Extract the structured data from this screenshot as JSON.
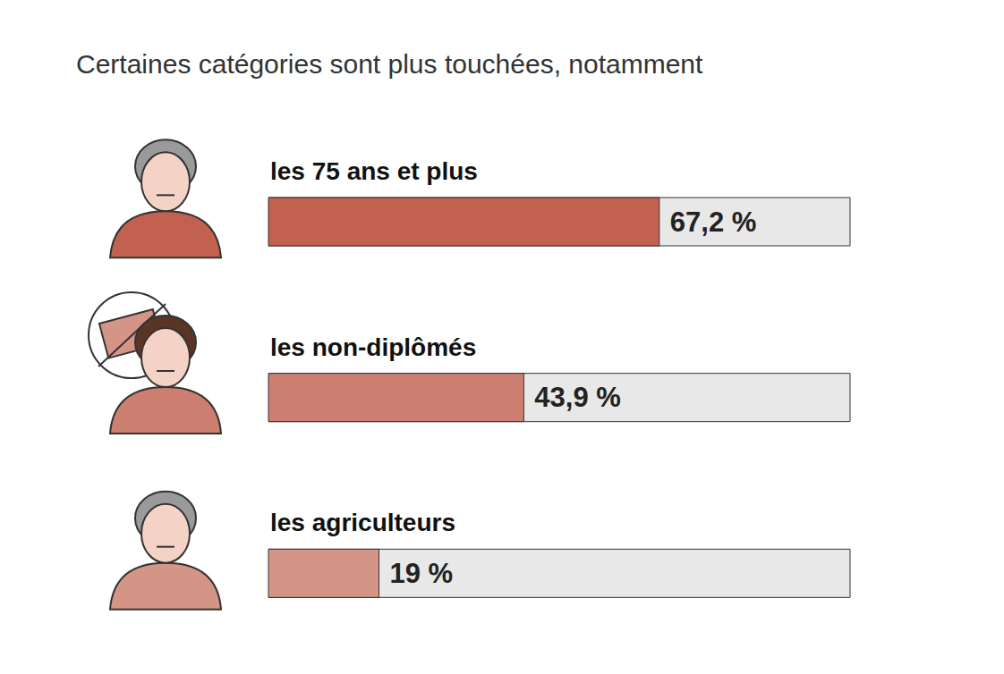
{
  "chart_data": {
    "type": "bar",
    "orientation": "horizontal",
    "title": "Certaines catégories sont plus touchées, notamment",
    "categories": [
      "les 75 ans et plus",
      "les non-diplômés",
      "les agriculteurs"
    ],
    "values": [
      67.2,
      43.9,
      19
    ],
    "value_labels": [
      "67,2 %",
      "43,9 %",
      "19 %"
    ],
    "colors": [
      "#c2614f",
      "#cc7f70",
      "#d49587"
    ],
    "xlim": [
      0,
      100
    ],
    "data_labels": true,
    "tick_labels": false
  }
}
